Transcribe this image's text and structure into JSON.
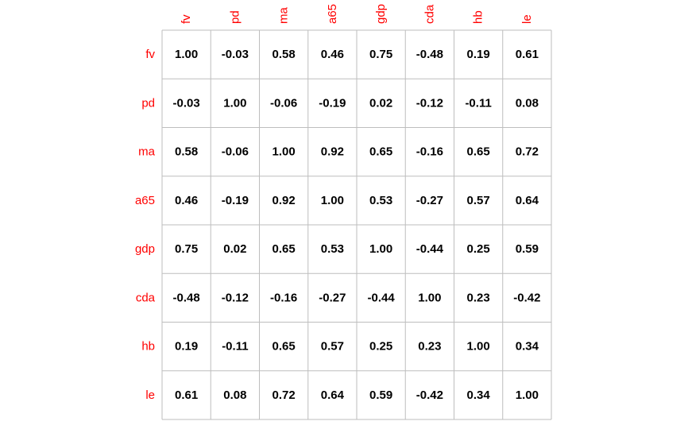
{
  "chart_data": {
    "type": "table",
    "title": "",
    "variables": [
      "fv",
      "pd",
      "ma",
      "a65",
      "gdp",
      "cda",
      "hb",
      "le"
    ],
    "matrix": [
      [
        "1.00",
        "-0.03",
        "0.58",
        "0.46",
        "0.75",
        "-0.48",
        "0.19",
        "0.61"
      ],
      [
        "-0.03",
        "1.00",
        "-0.06",
        "-0.19",
        "0.02",
        "-0.12",
        "-0.11",
        "0.08"
      ],
      [
        "0.58",
        "-0.06",
        "1.00",
        "0.92",
        "0.65",
        "-0.16",
        "0.65",
        "0.72"
      ],
      [
        "0.46",
        "-0.19",
        "0.92",
        "1.00",
        "0.53",
        "-0.27",
        "0.57",
        "0.64"
      ],
      [
        "0.75",
        "0.02",
        "0.65",
        "0.53",
        "1.00",
        "-0.44",
        "0.25",
        "0.59"
      ],
      [
        "-0.48",
        "-0.12",
        "-0.16",
        "-0.27",
        "-0.44",
        "1.00",
        "0.23",
        "-0.42"
      ],
      [
        "0.19",
        "-0.11",
        "0.65",
        "0.57",
        "0.25",
        "0.23",
        "1.00",
        "0.34"
      ],
      [
        "0.61",
        "0.08",
        "0.72",
        "0.64",
        "0.59",
        "-0.42",
        "0.34",
        "1.00"
      ]
    ],
    "label_color": "#ff0000",
    "value_color": "#000000",
    "grid_color": "#bebebe",
    "grid": true
  }
}
